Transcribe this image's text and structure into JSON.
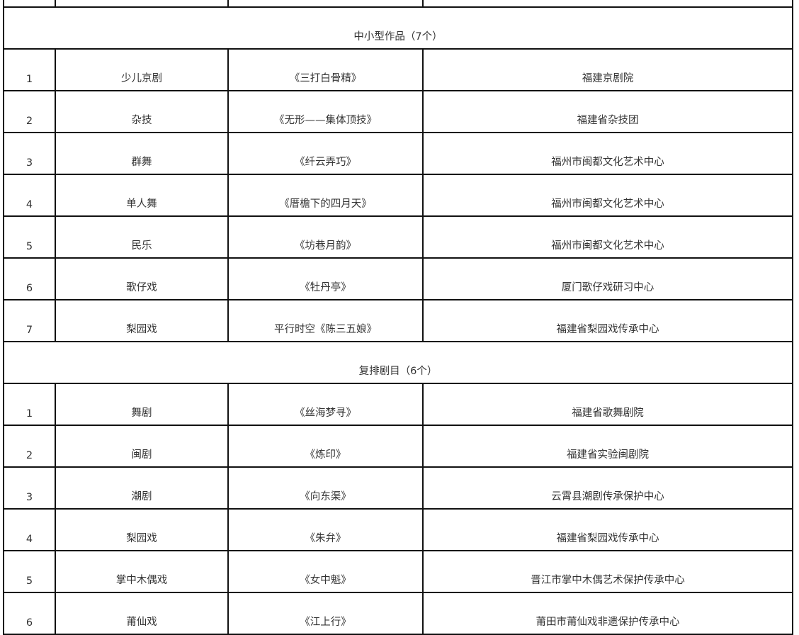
{
  "sections": [
    {
      "title": "中小型作品（7个）",
      "rows": [
        [
          "1",
          "少儿京剧",
          "《三打白骨精》",
          "福建京剧院"
        ],
        [
          "2",
          "杂技",
          "《无形——集体顶技》",
          "福建省杂技团"
        ],
        [
          "3",
          "群舞",
          "《纤云弄巧》",
          "福州市闽都文化艺术中心"
        ],
        [
          "4",
          "单人舞",
          "《厝檐下的四月天》",
          "福州市闽都文化艺术中心"
        ],
        [
          "5",
          "民乐",
          "《坊巷月韵》",
          "福州市闽都文化艺术中心"
        ],
        [
          "6",
          "歌仔戏",
          "《牡丹亭》",
          "厦门歌仔戏研习中心"
        ],
        [
          "7",
          "梨园戏",
          "平行时空《陈三五娘》",
          "福建省梨园戏传承中心"
        ]
      ]
    },
    {
      "title": "复排剧目（6个）",
      "rows": [
        [
          "1",
          "舞剧",
          "《丝海梦寻》",
          "福建省歌舞剧院"
        ],
        [
          "2",
          "闽剧",
          "《炼印》",
          "福建省实验闽剧院"
        ],
        [
          "3",
          "潮剧",
          "《向东渠》",
          "云霄县潮剧传承保护中心"
        ],
        [
          "4",
          "梨园戏",
          "《朱弁》",
          "福建省梨园戏传承中心"
        ],
        [
          "5",
          "掌中木偶戏",
          "《女中魁》",
          "晋江市掌中木偶艺术保护传承中心"
        ],
        [
          "6",
          "莆仙戏",
          "《江上行》",
          "莆田市莆仙戏非遗保护传承中心"
        ]
      ]
    }
  ]
}
